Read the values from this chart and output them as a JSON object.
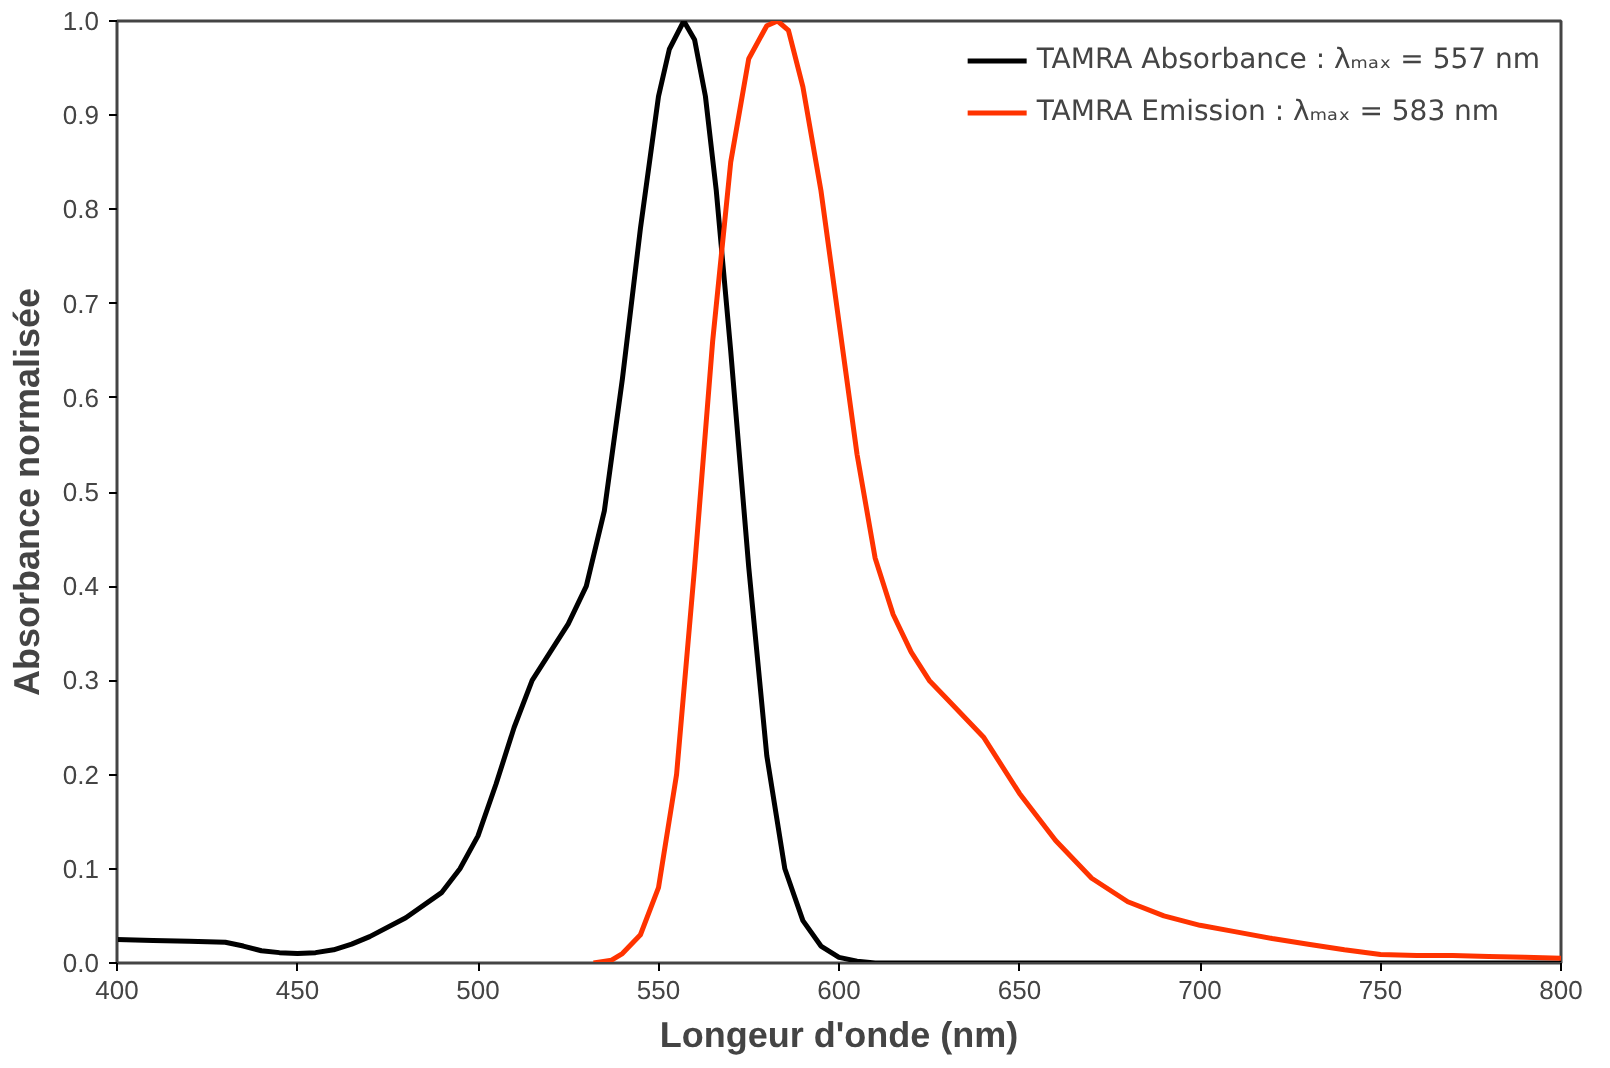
{
  "chart_data": {
    "type": "line",
    "xlabel": "Longeur d'onde (nm)",
    "ylabel": "Absorbance normalisée",
    "xlim": [
      400,
      800
    ],
    "ylim": [
      0,
      1.0
    ],
    "xticks": [
      400,
      450,
      500,
      550,
      600,
      650,
      700,
      750,
      800
    ],
    "yticks": [
      {
        "value": 0,
        "label": "0.0"
      },
      0.1,
      0.2,
      0.3,
      0.4,
      0.5,
      0.6,
      0.7,
      0.8,
      0.9,
      {
        "value": 1,
        "label": "1.0"
      }
    ],
    "grid": false,
    "legend": "top right",
    "line_style": "solid",
    "marker": "none",
    "series": [
      {
        "name": "TAMRA Absorbance : λₘₐₓ = 557 nm",
        "color": "#000000",
        "x": [
          400,
          410,
          420,
          430,
          435,
          440,
          445,
          450,
          455,
          460,
          465,
          470,
          480,
          490,
          495,
          500,
          505,
          510,
          515,
          520,
          525,
          530,
          535,
          540,
          545,
          550,
          553,
          557,
          560,
          563,
          566,
          570,
          575,
          580,
          585,
          590,
          595,
          600,
          605,
          610,
          650,
          700,
          750,
          800
        ],
        "values": [
          0.025,
          0.024,
          0.023,
          0.022,
          0.018,
          0.013,
          0.011,
          0.01,
          0.011,
          0.014,
          0.02,
          0.028,
          0.048,
          0.075,
          0.1,
          0.135,
          0.19,
          0.25,
          0.3,
          0.33,
          0.36,
          0.4,
          0.48,
          0.62,
          0.78,
          0.92,
          0.97,
          1.0,
          0.98,
          0.92,
          0.82,
          0.65,
          0.42,
          0.22,
          0.1,
          0.045,
          0.018,
          0.006,
          0.002,
          0.0,
          0.0,
          0.0,
          0.0,
          0.0
        ]
      },
      {
        "name": "TAMRA Emission : λₘₐₓ = 583 nm",
        "color": "#ff3300",
        "x": [
          532,
          537,
          540,
          545,
          550,
          555,
          560,
          565,
          570,
          575,
          580,
          583,
          586,
          590,
          595,
          600,
          605,
          610,
          615,
          620,
          625,
          630,
          640,
          650,
          660,
          670,
          680,
          690,
          700,
          710,
          720,
          730,
          740,
          750,
          760,
          770,
          780,
          790,
          800
        ],
        "values": [
          0.0,
          0.003,
          0.01,
          0.03,
          0.08,
          0.2,
          0.42,
          0.66,
          0.85,
          0.96,
          0.995,
          1.0,
          0.99,
          0.93,
          0.82,
          0.68,
          0.54,
          0.43,
          0.37,
          0.33,
          0.3,
          0.28,
          0.24,
          0.18,
          0.13,
          0.09,
          0.065,
          0.05,
          0.04,
          0.033,
          0.026,
          0.02,
          0.014,
          0.009,
          0.008,
          0.008,
          0.007,
          0.006,
          0.005
        ]
      }
    ]
  }
}
